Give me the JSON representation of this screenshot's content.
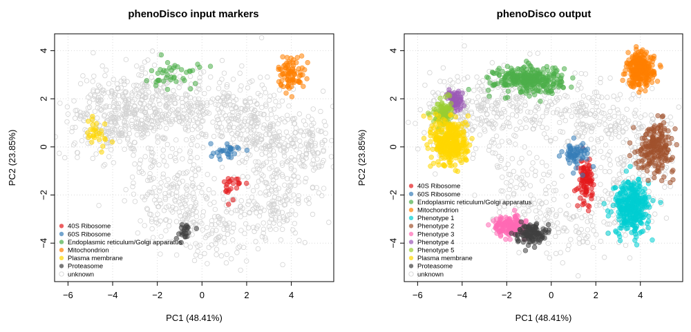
{
  "chart_data": [
    {
      "type": "scatter",
      "title": "phenoDisco input markers",
      "xlabel": "PC1 (48.41%)",
      "ylabel": "PC2 (23.85%)",
      "xlim": [
        -6.6,
        5.9
      ],
      "ylim": [
        -5.6,
        4.7
      ],
      "xticks": [
        -6,
        -4,
        -2,
        0,
        2,
        4
      ],
      "yticks": [
        -4,
        -2,
        0,
        2,
        4
      ],
      "grid": true,
      "legend_position": "bottom-left",
      "series": [
        {
          "name": "40S Ribosome",
          "color": "#E41A1C",
          "kind": "cluster",
          "n": 22,
          "center": [
            1.45,
            -1.6
          ],
          "spread": [
            0.22,
            0.3
          ]
        },
        {
          "name": "60S Ribosome",
          "color": "#377EB8",
          "kind": "cluster",
          "n": 28,
          "center": [
            1.1,
            -0.2
          ],
          "spread": [
            0.35,
            0.18
          ]
        },
        {
          "name": "Endoplasmic reticulum/Golgi apparatus",
          "color": "#4DAF4A",
          "kind": "cluster",
          "n": 40,
          "center": [
            -1.2,
            3.0
          ],
          "spread": [
            0.55,
            0.3
          ]
        },
        {
          "name": "Mitochondrion",
          "color": "#FF7F00",
          "kind": "cluster",
          "n": 80,
          "center": [
            4.0,
            3.1
          ],
          "spread": [
            0.3,
            0.35
          ]
        },
        {
          "name": "Plasma membrane",
          "color": "#FFD700",
          "kind": "cluster",
          "n": 28,
          "center": [
            -4.8,
            0.5
          ],
          "spread": [
            0.4,
            0.45
          ]
        },
        {
          "name": "Proteasome",
          "color": "#404040",
          "kind": "cluster",
          "n": 22,
          "center": [
            -0.8,
            -3.5
          ],
          "spread": [
            0.2,
            0.18
          ]
        },
        {
          "name": "unknown",
          "color": "#d3d3d3",
          "kind": "background",
          "n": 1500
        }
      ]
    },
    {
      "type": "scatter",
      "title": "phenoDisco output",
      "xlabel": "PC1 (48.41%)",
      "ylabel": "PC2 (23.85%)",
      "xlim": [
        -6.6,
        5.9
      ],
      "ylim": [
        -5.6,
        4.7
      ],
      "xticks": [
        -6,
        -4,
        -2,
        0,
        2,
        4
      ],
      "yticks": [
        -4,
        -2,
        0,
        2,
        4
      ],
      "grid": true,
      "legend_position": "bottom-left",
      "series": [
        {
          "name": "40S Ribosome",
          "color": "#E41A1C",
          "kind": "cluster",
          "n": 90,
          "center": [
            1.55,
            -1.4
          ],
          "spread": [
            0.15,
            0.45
          ]
        },
        {
          "name": "60S Ribosome",
          "color": "#377EB8",
          "kind": "cluster",
          "n": 60,
          "center": [
            1.1,
            -0.3
          ],
          "spread": [
            0.3,
            0.25
          ]
        },
        {
          "name": "Endoplasmic reticulum/Golgi apparatus",
          "color": "#4DAF4A",
          "kind": "cluster",
          "n": 300,
          "center": [
            -1.0,
            2.8
          ],
          "spread": [
            0.75,
            0.28
          ]
        },
        {
          "name": "Mitochondrion",
          "color": "#FF7F00",
          "kind": "cluster",
          "n": 260,
          "center": [
            4.0,
            3.2
          ],
          "spread": [
            0.3,
            0.35
          ]
        },
        {
          "name": "Phenotype 1",
          "color": "#00CED1",
          "kind": "cluster",
          "n": 320,
          "center": [
            3.6,
            -2.5
          ],
          "spread": [
            0.4,
            0.55
          ]
        },
        {
          "name": "Phenotype 2",
          "color": "#A0522D",
          "kind": "cluster",
          "n": 200,
          "center": [
            4.7,
            0.0
          ],
          "spread": [
            0.4,
            0.5
          ]
        },
        {
          "name": "Phenotype 3",
          "color": "#FF69B4",
          "kind": "cluster",
          "n": 160,
          "center": [
            -1.9,
            -3.3
          ],
          "spread": [
            0.35,
            0.2
          ]
        },
        {
          "name": "Phenotype 4",
          "color": "#9B59B6",
          "kind": "cluster",
          "n": 70,
          "center": [
            -4.3,
            1.9
          ],
          "spread": [
            0.18,
            0.25
          ]
        },
        {
          "name": "Phenotype 5",
          "color": "#9ACD32",
          "kind": "cluster",
          "n": 90,
          "center": [
            -4.9,
            1.4
          ],
          "spread": [
            0.2,
            0.28
          ]
        },
        {
          "name": "Plasma membrane",
          "color": "#FFD700",
          "kind": "cluster",
          "n": 350,
          "center": [
            -4.5,
            0.2
          ],
          "spread": [
            0.38,
            0.5
          ]
        },
        {
          "name": "Proteasome",
          "color": "#404040",
          "kind": "cluster",
          "n": 110,
          "center": [
            -0.95,
            -3.6
          ],
          "spread": [
            0.3,
            0.2
          ]
        },
        {
          "name": "unknown",
          "color": "#d3d3d3",
          "kind": "background",
          "n": 900
        }
      ]
    }
  ]
}
